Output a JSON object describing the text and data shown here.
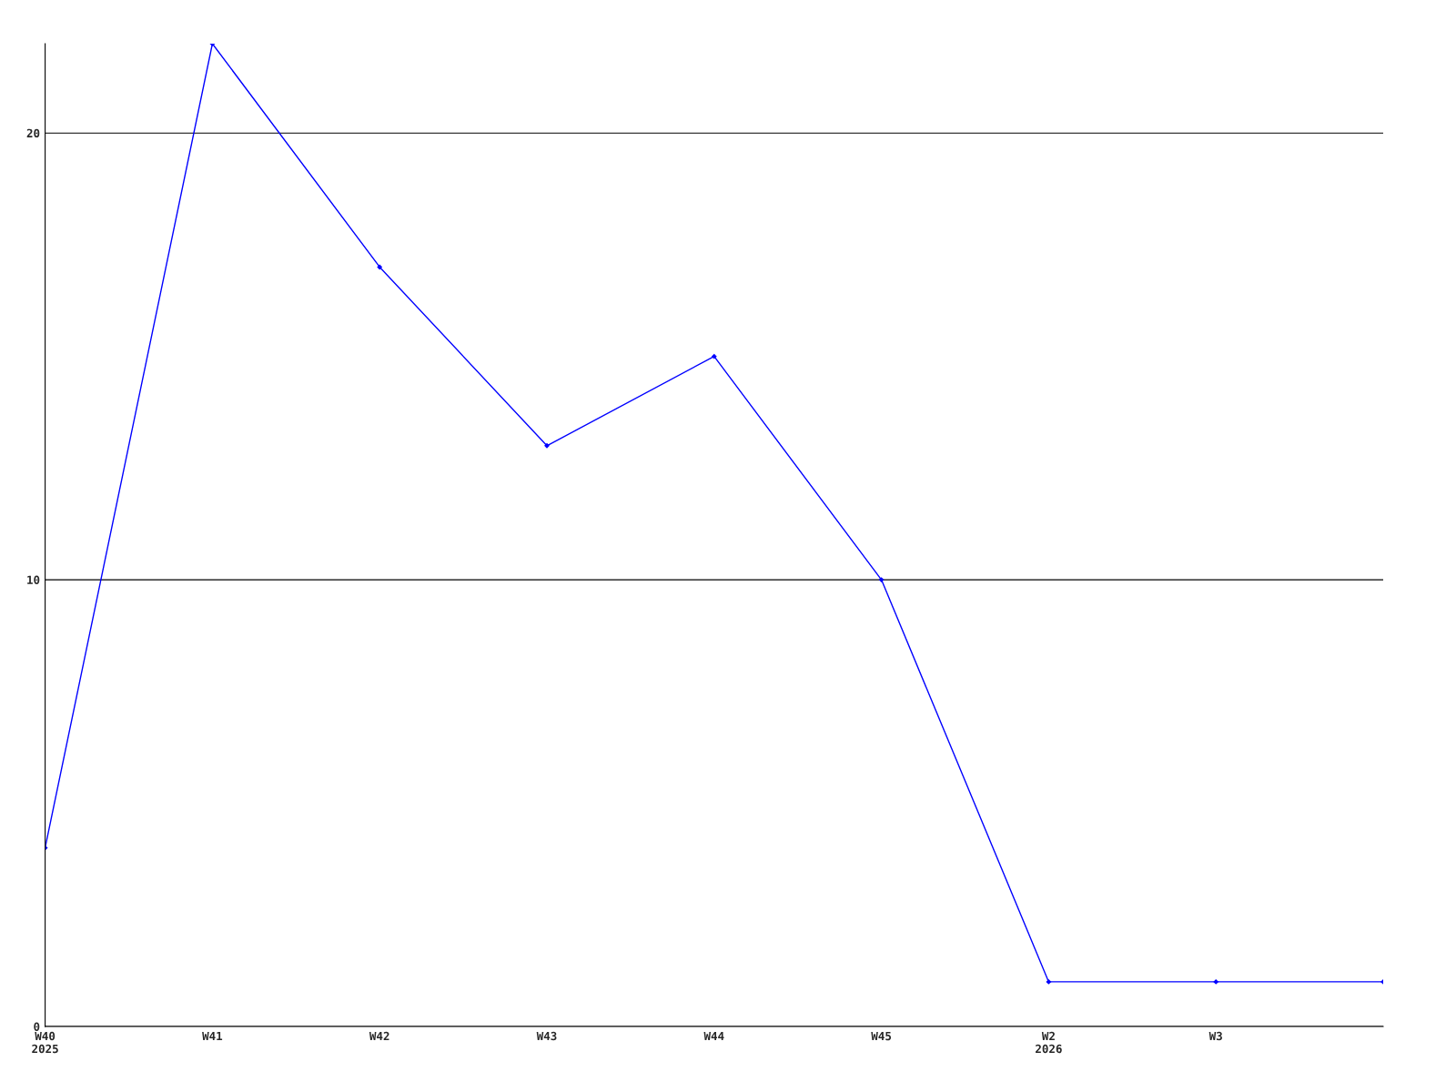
{
  "chart_data": {
    "type": "line",
    "categories": [
      "W40\n2025",
      "W41",
      "W42",
      "W43",
      "W44",
      "W45",
      "W2\n2026",
      "W3",
      null
    ],
    "series": [
      {
        "color": "#0000ff",
        "values": [
          4,
          22,
          17,
          13,
          15,
          10,
          1,
          1,
          1
        ]
      }
    ],
    "ylim": [
      0,
      22
    ],
    "yticks": [
      0,
      10,
      20
    ],
    "grid": "y",
    "legend": false,
    "marker": "diamond",
    "line_style": "solid"
  }
}
